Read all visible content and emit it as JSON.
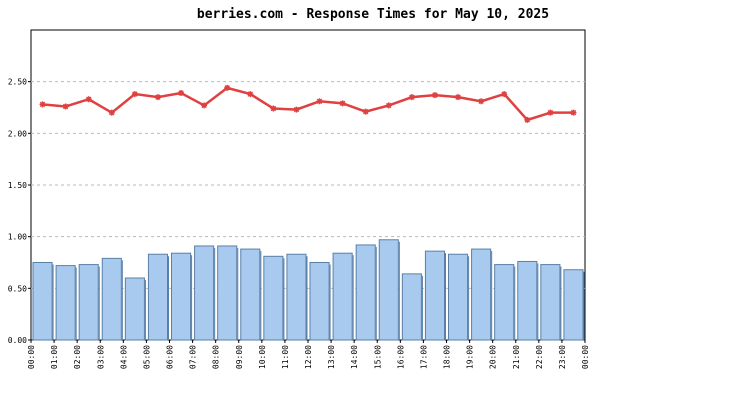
{
  "chart_data": {
    "type": "combo",
    "title": "berries.com - Response Times for May 10, 2025",
    "x_labels": [
      "00:00",
      "01:00",
      "02:00",
      "03:00",
      "04:00",
      "05:00",
      "06:00",
      "07:00",
      "08:00",
      "09:00",
      "10:00",
      "11:00",
      "12:00",
      "13:00",
      "14:00",
      "15:00",
      "16:00",
      "17:00",
      "18:00",
      "19:00",
      "20:00",
      "21:00",
      "22:00",
      "23:00",
      "00:00"
    ],
    "bars": {
      "color": "#a8caee",
      "values": [
        0.75,
        0.72,
        0.73,
        0.79,
        0.6,
        0.83,
        0.84,
        0.91,
        0.91,
        0.88,
        0.81,
        0.83,
        0.75,
        0.84,
        0.92,
        0.97,
        0.64,
        0.86,
        0.83,
        0.88,
        0.73,
        0.76,
        0.73,
        0.68
      ]
    },
    "line": {
      "color": "#e0403f",
      "values": [
        2.28,
        2.26,
        2.33,
        2.2,
        2.38,
        2.35,
        2.39,
        2.27,
        2.44,
        2.38,
        2.24,
        2.23,
        2.31,
        2.29,
        2.21,
        2.27,
        2.35,
        2.37,
        2.35,
        2.31,
        2.38,
        2.13,
        2.2,
        2.2
      ]
    },
    "ylim": [
      0,
      3
    ],
    "yticks": [
      {
        "value": 0,
        "label": "0.00"
      },
      {
        "value": 0.5,
        "label": "0.50"
      },
      {
        "value": 1,
        "label": "1.00"
      },
      {
        "value": 1.5,
        "label": "1.50"
      },
      {
        "value": 2,
        "label": "2.00"
      },
      {
        "value": 2.5,
        "label": "2.50"
      }
    ],
    "grid": true
  }
}
